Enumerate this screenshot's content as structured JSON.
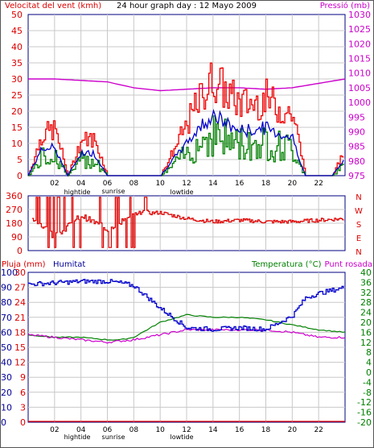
{
  "header": {
    "title": "24 hour graph day : 12 Mayo 2009",
    "wind_label": "Velocitat del vent (kmh)",
    "pressure_label": "Pressió (mb)"
  },
  "middle": {
    "compass_labels": [
      "N",
      "W",
      "S",
      "E",
      "N"
    ]
  },
  "bottom_header": {
    "rain_label": "Pluja (mm)",
    "humidity_label": "Humitat",
    "temp_label": "Temperatura (°C)",
    "dew_label": "Punt rosada"
  },
  "x_axis": {
    "ticks": [
      "02",
      "04",
      "06",
      "08",
      "10",
      "12",
      "14",
      "16",
      "18",
      "20",
      "22"
    ],
    "annotations": [
      "hightide",
      "sunrise",
      "lowtide"
    ]
  },
  "colors": {
    "wind_gust": "#ee0000",
    "wind_avg": "#0000cc",
    "wind_speed": "#008000",
    "pressure": "#cc00cc",
    "direction": "#dd0000",
    "humidity": "#0000cc",
    "temperature": "#008000",
    "dewpoint": "#cc00cc",
    "rain": "#ee0000",
    "frame": "#000080",
    "label_red": "#dd0000",
    "label_magenta": "#cc00cc",
    "label_blue": "#000099",
    "label_green": "#008000"
  },
  "chart_data": [
    {
      "type": "line",
      "series": [
        {
          "name": "Velocitat del vent (kmh)",
          "axis": "left",
          "x": [
            0,
            1,
            2,
            3,
            4,
            5,
            6,
            7,
            8,
            9,
            10,
            11,
            12,
            13,
            14,
            15,
            16,
            17,
            18,
            19,
            20,
            21,
            22,
            23,
            24
          ],
          "values": [
            0,
            8,
            9,
            0,
            7,
            7,
            0,
            0,
            0,
            0,
            0,
            5,
            10,
            15,
            19,
            16,
            14,
            14,
            15,
            13,
            12,
            0,
            0,
            0,
            5
          ]
        },
        {
          "name": "Pressió (mb)",
          "axis": "right",
          "x": [
            0,
            2,
            4,
            6,
            8,
            10,
            12,
            14,
            16,
            18,
            20,
            22,
            24
          ],
          "values": [
            1008.0,
            1008.0,
            1007.5,
            1007.0,
            1005.0,
            1004.0,
            1004.5,
            1005.0,
            1005.0,
            1004.5,
            1005.0,
            1006.5,
            1008.0
          ]
        }
      ],
      "y_left_ticks": [
        0,
        5,
        10,
        15,
        20,
        25,
        30,
        35,
        40,
        45,
        50
      ],
      "y_right_ticks": [
        975,
        980,
        985,
        990,
        995,
        1000,
        1005,
        1010,
        1015,
        1020,
        1025,
        1030
      ],
      "ylim": [
        0,
        50
      ],
      "ylim_right": [
        975,
        1030
      ],
      "grid": true
    },
    {
      "type": "line",
      "series": [
        {
          "name": "direction",
          "x": [
            0,
            2,
            4,
            6,
            8,
            10,
            12,
            14,
            16,
            18,
            20,
            22,
            24
          ],
          "values": [
            240,
            90,
            230,
            140,
            240,
            250,
            210,
            190,
            200,
            190,
            190,
            200,
            210
          ]
        }
      ],
      "y_ticks": [
        0,
        90,
        180,
        270,
        360
      ],
      "ylim": [
        0,
        360
      ],
      "grid": true
    },
    {
      "type": "line",
      "series": [
        {
          "name": "Humitat",
          "axis": "left",
          "x": [
            0,
            2,
            4,
            6,
            7,
            8,
            10,
            12,
            14,
            16,
            18,
            20,
            21,
            22,
            24
          ],
          "values": [
            92,
            93,
            94,
            94,
            93,
            91,
            76,
            63,
            62,
            63,
            62,
            71,
            83,
            86,
            90
          ]
        },
        {
          "name": "Temperatura (°C)",
          "axis": "right",
          "x": [
            0,
            2,
            4,
            6,
            7,
            8,
            10,
            12,
            14,
            16,
            18,
            20,
            22,
            24
          ],
          "values": [
            15,
            14,
            14,
            13,
            13,
            14,
            20,
            23,
            22,
            22,
            21,
            19,
            17,
            16
          ]
        },
        {
          "name": "Punt rosada",
          "axis": "right",
          "x": [
            0,
            2,
            4,
            6,
            8,
            10,
            12,
            14,
            16,
            18,
            20,
            22,
            24
          ],
          "values": [
            15,
            14,
            13,
            12,
            13,
            15,
            17,
            17,
            17,
            17,
            16,
            14,
            14
          ]
        },
        {
          "name": "Pluja (mm)",
          "axis": "left2",
          "x": [
            0,
            24
          ],
          "values": [
            0,
            0
          ]
        }
      ],
      "y_left_ticks": [
        0,
        10,
        20,
        30,
        40,
        50,
        60,
        70,
        80,
        90,
        100
      ],
      "y_left2_ticks": [
        0,
        3,
        6,
        9,
        12,
        15,
        18,
        21,
        24,
        27,
        30
      ],
      "y_right_ticks": [
        -20,
        -16,
        -12,
        -8,
        -4,
        0,
        4,
        8,
        12,
        16,
        20,
        24,
        28,
        32,
        36,
        40
      ],
      "ylim": [
        0,
        100
      ],
      "ylim_right": [
        -20,
        40
      ],
      "grid": true
    }
  ]
}
